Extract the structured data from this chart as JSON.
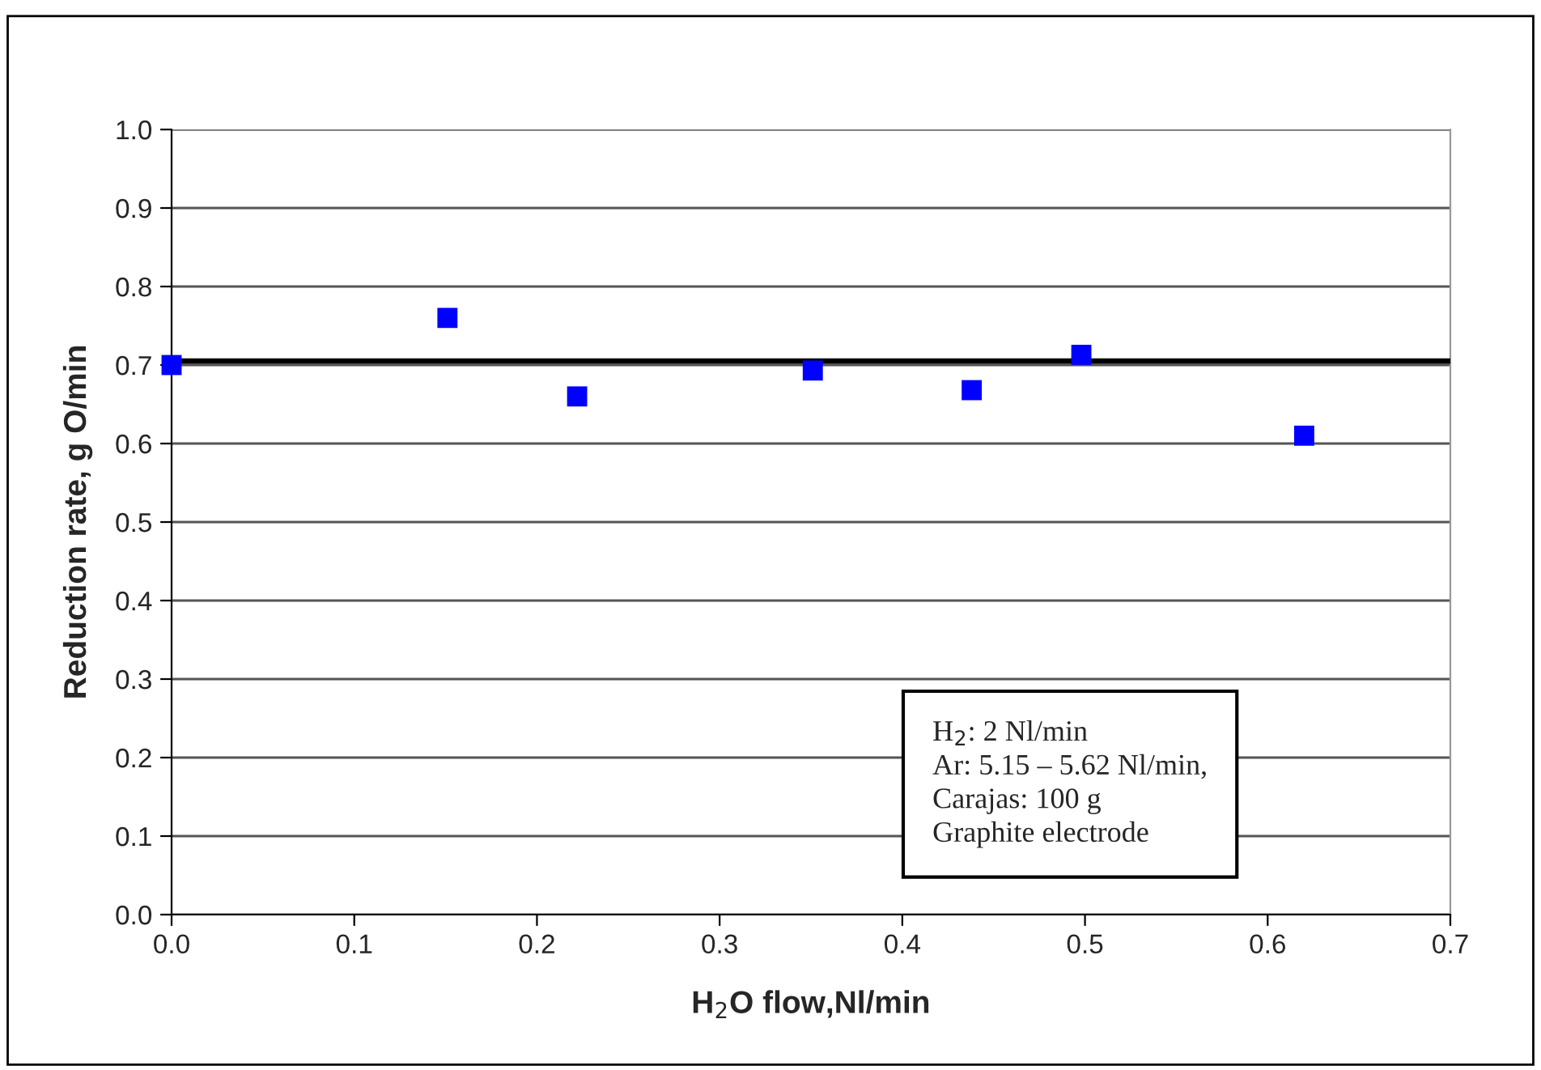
{
  "chart_data": {
    "type": "scatter",
    "xlabel": "H$_{2}$O flow,Nl/min",
    "ylabel": "Reduction rate, g O/min",
    "x": [
      0.0,
      0.151,
      0.222,
      0.351,
      0.438,
      0.498,
      0.62
    ],
    "series": [
      {
        "color": "#0000ff",
        "values": [
          0.7,
          0.76,
          0.66,
          0.693,
          0.668,
          0.713,
          0.61
        ]
      }
    ],
    "marker": "square",
    "xlim": [
      0.0,
      0.7
    ],
    "xticks": [
      {
        "value": 0,
        "label": "0.0"
      },
      0.1,
      0.2,
      0.3,
      0.4,
      0.5,
      0.6,
      0.7
    ],
    "ylim": [
      0.0,
      1.0
    ],
    "yticks": [
      {
        "value": 0,
        "label": "0.0"
      },
      0.1,
      0.2,
      0.3,
      0.4,
      0.5,
      0.6,
      0.7,
      0.8,
      0.9,
      {
        "value": 1,
        "label": "1.0"
      }
    ],
    "grid": "y",
    "legend": false,
    "ref_lines": [
      {
        "axis": "y",
        "value": 0.705,
        "color": "#000000"
      }
    ],
    "annotations": [
      "H$_{2}$: 2 Nl/min\nAr: 5.15 – 5.62 Nl/min,\nCarajas: 100 g\nGraphite electrode"
    ]
  }
}
